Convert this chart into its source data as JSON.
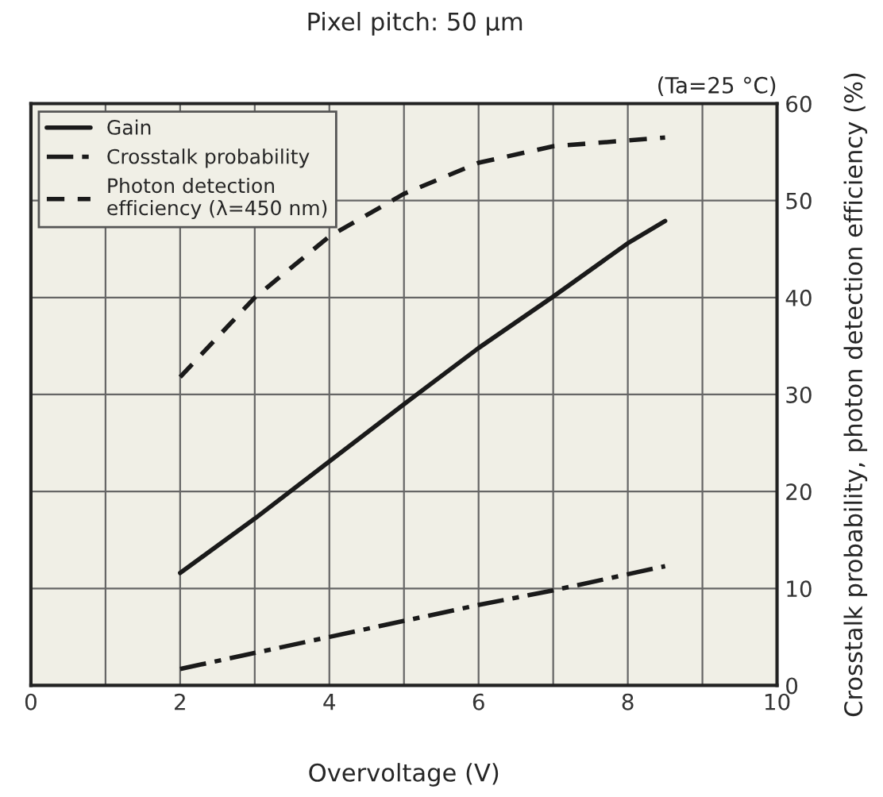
{
  "chart_data": {
    "type": "line",
    "title": "Pixel pitch: 50 µm",
    "xlabel": "Overvoltage (V)",
    "ylabel": "Crosstalk probability, photon detection efficiency (%)",
    "annotations": [
      "(Ta=25 °C)"
    ],
    "xlim": [
      0,
      10
    ],
    "xticks": [
      0,
      {
        "value": 1,
        "label": null
      },
      2,
      {
        "value": 3,
        "label": null
      },
      4,
      {
        "value": 5,
        "label": null
      },
      6,
      {
        "value": 7,
        "label": null
      },
      8,
      {
        "value": 9,
        "label": null
      },
      10
    ],
    "ylim": [
      0,
      60
    ],
    "yticks": [
      0,
      10,
      20,
      30,
      40,
      50,
      60
    ],
    "grid": true,
    "legend": "top left",
    "marker": "none",
    "series": [
      {
        "name": "Gain",
        "color": "#1a1a1a",
        "line_style": "solid",
        "x": [
          2,
          3,
          4,
          5,
          6,
          7,
          8,
          8.5
        ],
        "values": [
          11.6,
          17.2,
          23.1,
          29.0,
          34.8,
          40.1,
          45.6,
          47.9
        ]
      },
      {
        "name": "Crosstalk probability",
        "color": "#1a1a1a",
        "line_style": "dashdot",
        "x": [
          2,
          4,
          6,
          7,
          8.5
        ],
        "values": [
          1.7,
          5.0,
          8.3,
          9.8,
          12.3
        ]
      },
      {
        "name": "Photon detection\nefficiency (λ=450 nm)",
        "color": "#1a1a1a",
        "line_style": "dashed",
        "x": [
          2,
          3,
          4,
          5,
          6,
          7,
          8.5
        ],
        "values": [
          31.8,
          40.0,
          46.3,
          50.7,
          53.9,
          55.6,
          56.5
        ]
      }
    ]
  }
}
